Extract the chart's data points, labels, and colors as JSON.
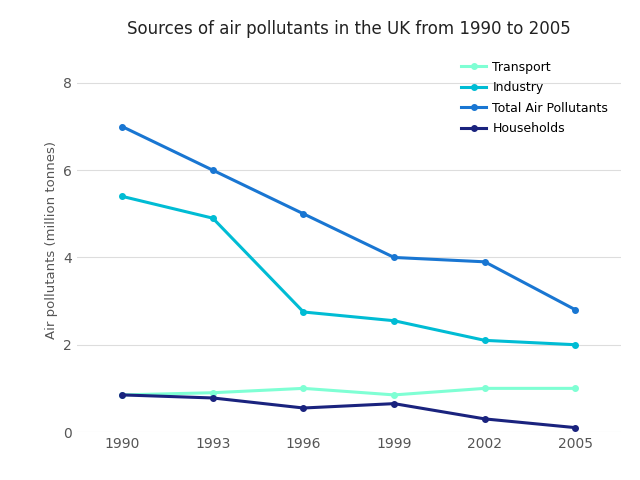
{
  "title": "Sources of air pollutants in the UK from 1990 to 2005",
  "ylabel": "Air pollutants (million tonnes)",
  "years": [
    1990,
    1993,
    1996,
    1999,
    2002,
    2005
  ],
  "series": {
    "Transport": {
      "values": [
        0.85,
        0.9,
        1.0,
        0.85,
        1.0,
        1.0
      ],
      "color": "#7fffd4",
      "linewidth": 2.2
    },
    "Industry": {
      "values": [
        5.4,
        4.9,
        2.75,
        2.55,
        2.1,
        2.0
      ],
      "color": "#00bcd4",
      "linewidth": 2.2
    },
    "Total Air Pollutants": {
      "values": [
        7.0,
        6.0,
        5.0,
        4.0,
        3.9,
        2.8
      ],
      "color": "#1976d2",
      "linewidth": 2.2
    },
    "Households": {
      "values": [
        0.85,
        0.78,
        0.55,
        0.65,
        0.3,
        0.1
      ],
      "color": "#1a237e",
      "linewidth": 2.2
    }
  },
  "ylim": [
    0,
    8.8
  ],
  "yticks": [
    0,
    2,
    4,
    6,
    8
  ],
  "xticks": [
    1990,
    1993,
    1996,
    1999,
    2002,
    2005
  ],
  "legend_order": [
    "Transport",
    "Industry",
    "Total Air Pollutants",
    "Households"
  ],
  "background_color": "#ffffff",
  "grid_color": "#dddddd"
}
